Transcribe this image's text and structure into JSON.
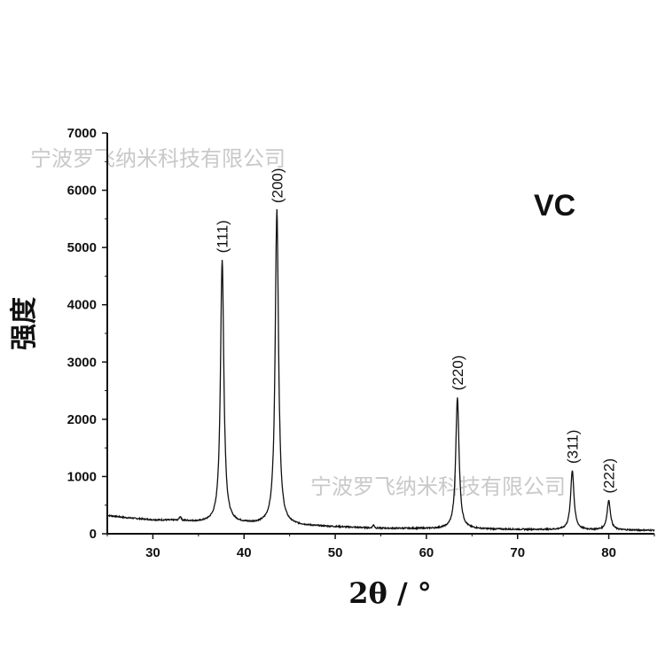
{
  "chart_data": {
    "type": "line",
    "xlabel": "2θ / °",
    "ylabel": "强度",
    "xlim": [
      25,
      85
    ],
    "ylim": [
      0,
      7000
    ],
    "x_ticks": [
      30,
      40,
      50,
      60,
      70,
      80
    ],
    "y_ticks": [
      0,
      1000,
      2000,
      3000,
      4000,
      5000,
      6000,
      7000
    ],
    "sample_label": "VC",
    "background": [
      [
        25,
        320
      ],
      [
        27,
        280
      ],
      [
        30,
        240
      ],
      [
        33,
        230
      ],
      [
        35,
        200
      ],
      [
        50,
        120
      ],
      [
        55,
        95
      ],
      [
        60,
        90
      ],
      [
        70,
        75
      ],
      [
        75,
        70
      ],
      [
        80,
        65
      ],
      [
        85,
        60
      ]
    ],
    "peaks": [
      {
        "x": 37.6,
        "y": 4780,
        "label": "(111)"
      },
      {
        "x": 43.6,
        "y": 5650,
        "label": "(200)"
      },
      {
        "x": 63.4,
        "y": 2380,
        "label": "(220)"
      },
      {
        "x": 76.0,
        "y": 1100,
        "label": "(311)"
      },
      {
        "x": 80.0,
        "y": 580,
        "label": "(222)"
      }
    ],
    "minor_bumps": [
      {
        "x": 33.0,
        "y": 60
      },
      {
        "x": 54.2,
        "y": 50
      }
    ],
    "grid": false,
    "line_color": "#111111"
  },
  "watermarks": [
    "宁波罗飞纳米科技有限公司",
    "宁波罗飞纳米科技有限公司"
  ]
}
